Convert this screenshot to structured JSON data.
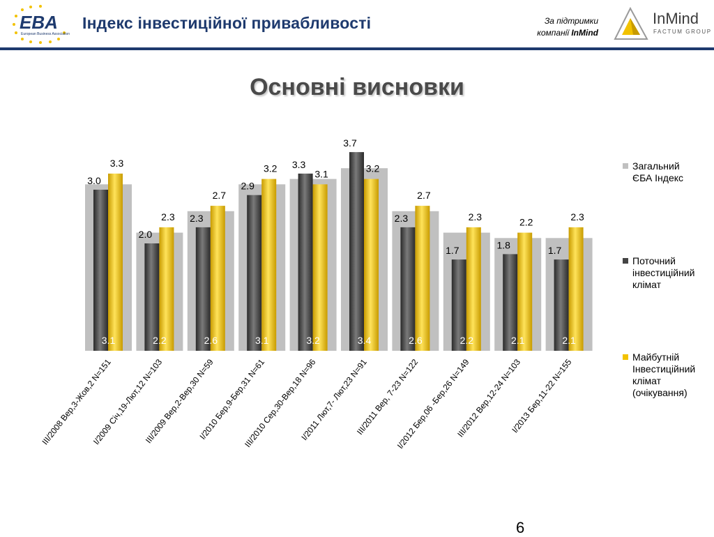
{
  "header": {
    "logo_text": "EBA",
    "logo_subtext": "European Business Association",
    "title": "Індекс інвестиційної привабливості",
    "support_line1": "За підтримки",
    "support_line2_prefix": "компанії ",
    "support_line2_brand": "InMind",
    "partner_name": "InMind",
    "partner_sub": "FACTUM GROUP"
  },
  "slide": {
    "title": "Основні висновки",
    "page_number": "6"
  },
  "colors": {
    "total": "#c0c0c0",
    "current": "#555555",
    "future": "#f2c200",
    "brand_blue": "#1e3a6e"
  },
  "chart_data": {
    "type": "bar",
    "categories": [
      "III/2008 Вер,3-Жов,2 N=151",
      "I/2009 Січ,19-Лют,12 N=103",
      "III/2009 Вер,2-Вер,30 N=59",
      "I/2010 Бер,9-Бер,31 N=61",
      "III/2010 Сер,30-Вер,18 N=96",
      "I/2011 Лют,7- Лют,23 N=91",
      "III/2011 Вер, 7-23 N=122",
      "I/2012 Бер,06 -Бер,26 N=149",
      "III/2012 Вер,12-24 N=103",
      "I/2013 Бер,11-22 N=155"
    ],
    "series": [
      {
        "name": "Загальний\nЄБА Індекс",
        "values": [
          3.1,
          2.2,
          2.6,
          3.1,
          3.2,
          3.4,
          2.6,
          2.2,
          2.1,
          2.1
        ],
        "labels": [
          "3.1",
          "2.2",
          "2.6",
          "3.1",
          "3.2",
          "3.4",
          "2.6",
          "2.2",
          "2.1",
          "2.1"
        ]
      },
      {
        "name": "Поточний\nінвестиційний\nклімат",
        "values": [
          3.0,
          2.0,
          2.3,
          2.9,
          3.3,
          3.7,
          2.3,
          1.7,
          1.8,
          1.7
        ],
        "labels": [
          "3.0",
          "2.0",
          "2.3",
          "2.9",
          "3.3",
          "3.7",
          "2.3",
          "1.7",
          "1.8",
          "1.7"
        ]
      },
      {
        "name": "Майбутній\nІнвестиційний\nклімат\n(очікування)",
        "values": [
          3.3,
          2.3,
          2.7,
          3.2,
          3.1,
          3.2,
          2.7,
          2.3,
          2.2,
          2.3
        ],
        "labels": [
          "3.3",
          "2.3",
          "2.7",
          "3.2",
          "3.1",
          "3.2",
          "2.7",
          "2.3",
          "2.2",
          "2.3"
        ]
      }
    ],
    "ylim": [
      0,
      4
    ],
    "grid": false,
    "legend_position": "right"
  }
}
